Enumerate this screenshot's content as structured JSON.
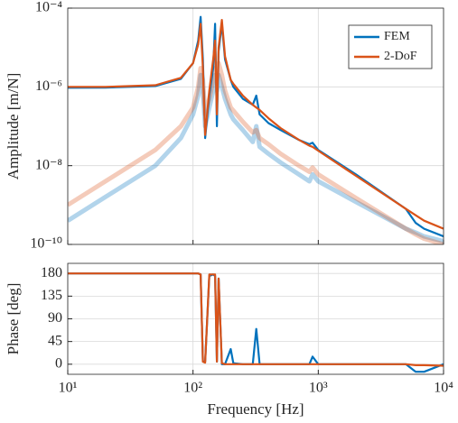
{
  "chart_data": [
    {
      "type": "line",
      "ylabel": "Amplitude [m/N]",
      "log_x": true,
      "log_y": true,
      "grid": true,
      "legend": "upper right",
      "x": [
        10,
        20,
        50,
        80,
        100,
        110,
        115,
        120,
        125,
        135,
        145,
        150,
        155,
        160,
        170,
        180,
        200,
        210,
        250,
        300,
        320,
        340,
        400,
        500,
        700,
        850,
        900,
        1000,
        2000,
        5000,
        6000,
        7000,
        10000
      ],
      "xlim": [
        10,
        10000
      ],
      "xticks": [
        {
          "value": 10,
          "label": "10¹"
        },
        {
          "value": 100,
          "label": "10²"
        },
        {
          "value": 1000,
          "label": "10³"
        },
        {
          "value": 10000,
          "label": "10⁴"
        }
      ],
      "ylim": [
        1e-10,
        0.0001
      ],
      "yticks": [
        {
          "value": 1e-10,
          "label": "10⁻¹⁰"
        },
        {
          "value": 1e-08,
          "label": "10⁻⁸"
        },
        {
          "value": 1e-06,
          "label": "10⁻⁶"
        },
        {
          "value": 0.0001,
          "label": "10⁻⁴"
        }
      ],
      "series": [
        {
          "color": "#0072bd",
          "opacity": 0.3,
          "values": [
            4e-10,
            1.6e-09,
            1e-08,
            5e-08,
            2e-07,
            6e-07,
            2e-06,
            8e-07,
            1e-07,
            3e-07,
            8e-07,
            2e-06,
            8e-07,
            2e-06,
            1e-06,
            5e-07,
            2e-07,
            1.5e-07,
            8e-08,
            4e-08,
            1e-07,
            3e-08,
            2e-08,
            1.2e-08,
            6e-09,
            4e-09,
            6e-09,
            4e-09,
            1.2e-09,
            2.5e-10,
            2e-10,
            1.6e-10,
            1.2e-10
          ]
        },
        {
          "color": "#d95319",
          "opacity": 0.3,
          "values": [
            1e-09,
            4e-09,
            2.5e-08,
            1e-07,
            3e-07,
            1e-06,
            3e-06,
            1.5e-06,
            2e-07,
            5e-07,
            1.5e-06,
            3e-06,
            1.5e-06,
            4e-06,
            2e-06,
            8e-07,
            3e-07,
            2.5e-07,
            1.3e-07,
            7e-08,
            8e-08,
            5e-08,
            3.5e-08,
            2e-08,
            1e-08,
            7e-09,
            9e-09,
            6e-09,
            1.5e-09,
            2.5e-10,
            1.8e-10,
            1.4e-10,
            1e-10
          ]
        },
        {
          "name": "FEM",
          "color": "#0072bd",
          "values": [
            9.5e-07,
            9.6e-07,
            1.05e-06,
            1.6e-06,
            4e-06,
            1.5e-05,
            6e-05,
            5e-06,
            5e-08,
            6e-07,
            3e-06,
            4e-05,
            1e-07,
            8e-06,
            4e-05,
            5e-06,
            1.5e-06,
            1e-06,
            5e-07,
            3.5e-07,
            6e-07,
            2e-07,
            1.2e-07,
            8e-08,
            4.5e-08,
            3.5e-08,
            3.8e-08,
            2.5e-08,
            6e-09,
            8e-10,
            3.5e-10,
            2.5e-10,
            1.6e-10
          ]
        },
        {
          "name": "2-DoF",
          "color": "#d95319",
          "values": [
            1e-06,
            1e-06,
            1.1e-06,
            1.7e-06,
            4e-06,
            1.2e-05,
            4e-05,
            3e-06,
            6e-08,
            8e-07,
            5e-06,
            1.5e-05,
            2e-07,
            1e-05,
            5e-05,
            6e-06,
            1.5e-06,
            1.2e-06,
            6e-07,
            3.5e-07,
            3e-07,
            2.6e-07,
            1.6e-07,
            9e-08,
            4.5e-08,
            3.2e-08,
            3e-08,
            2.4e-08,
            5.5e-09,
            8e-10,
            5.5e-10,
            4e-10,
            2.5e-10
          ]
        }
      ]
    },
    {
      "type": "line",
      "ylabel": "Phase [deg]",
      "xlabel": "Frequency [Hz]",
      "log_x": true,
      "log_y": false,
      "grid": true,
      "x": [
        10,
        20,
        50,
        80,
        100,
        110,
        115,
        120,
        125,
        135,
        145,
        150,
        155,
        160,
        170,
        180,
        200,
        210,
        250,
        300,
        320,
        340,
        400,
        500,
        700,
        850,
        900,
        1000,
        2000,
        5000,
        6000,
        7000,
        10000
      ],
      "xlim": [
        10,
        10000
      ],
      "xticks": [
        {
          "value": 10,
          "label": "10¹"
        },
        {
          "value": 100,
          "label": "10²"
        },
        {
          "value": 1000,
          "label": "10³"
        },
        {
          "value": 10000,
          "label": "10⁴"
        }
      ],
      "ylim": [
        -20,
        200
      ],
      "yticks": [
        0,
        45,
        90,
        135,
        180
      ],
      "series": [
        {
          "color": "#0072bd",
          "values": [
            180,
            180,
            180,
            180,
            180,
            180,
            178,
            5,
            5,
            175,
            178,
            175,
            5,
            170,
            0,
            0,
            30,
            2,
            0,
            0,
            70,
            0,
            0,
            0,
            0,
            0,
            15,
            0,
            0,
            0,
            -15,
            -15,
            0
          ]
        },
        {
          "color": "#d95319",
          "values": [
            180,
            180,
            180,
            180,
            180,
            180,
            178,
            5,
            3,
            178,
            178,
            178,
            5,
            170,
            2,
            0,
            0,
            0,
            0,
            0,
            0,
            0,
            0,
            0,
            0,
            0,
            0,
            0,
            0,
            0,
            -2,
            -2,
            -3
          ]
        }
      ]
    }
  ]
}
